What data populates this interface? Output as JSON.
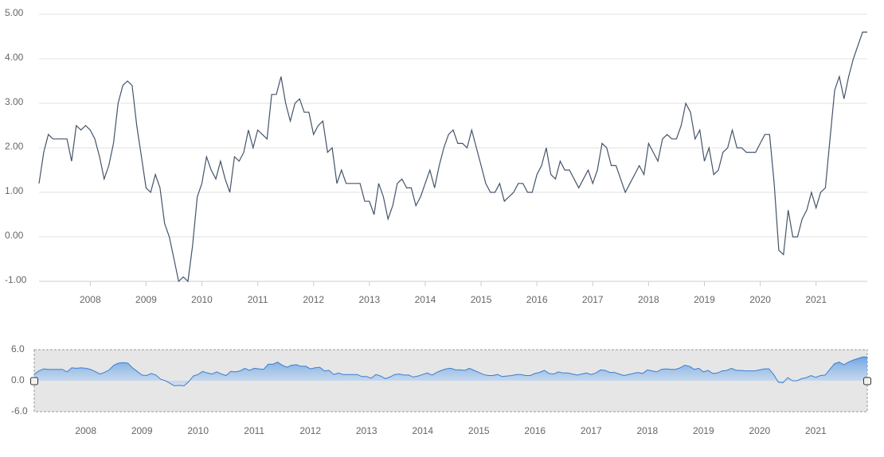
{
  "chart_data": [
    {
      "type": "line",
      "x": [
        2007.083,
        2007.167,
        2007.25,
        2007.333,
        2007.417,
        2007.5,
        2007.583,
        2007.667,
        2007.75,
        2007.833,
        2007.917,
        2008,
        2008.083,
        2008.167,
        2008.25,
        2008.333,
        2008.417,
        2008.5,
        2008.583,
        2008.667,
        2008.75,
        2008.833,
        2008.917,
        2009,
        2009.083,
        2009.167,
        2009.25,
        2009.333,
        2009.417,
        2009.5,
        2009.583,
        2009.667,
        2009.75,
        2009.833,
        2009.917,
        2010,
        2010.083,
        2010.167,
        2010.25,
        2010.333,
        2010.417,
        2010.5,
        2010.583,
        2010.667,
        2010.75,
        2010.833,
        2010.917,
        2011,
        2011.083,
        2011.167,
        2011.25,
        2011.333,
        2011.417,
        2011.5,
        2011.583,
        2011.667,
        2011.75,
        2011.833,
        2011.917,
        2012,
        2012.083,
        2012.167,
        2012.25,
        2012.333,
        2012.417,
        2012.5,
        2012.583,
        2012.667,
        2012.75,
        2012.833,
        2012.917,
        2013,
        2013.083,
        2013.167,
        2013.25,
        2013.333,
        2013.417,
        2013.5,
        2013.583,
        2013.667,
        2013.75,
        2013.833,
        2013.917,
        2014,
        2014.083,
        2014.167,
        2014.25,
        2014.333,
        2014.417,
        2014.5,
        2014.583,
        2014.667,
        2014.75,
        2014.833,
        2014.917,
        2015,
        2015.083,
        2015.167,
        2015.25,
        2015.333,
        2015.417,
        2015.5,
        2015.583,
        2015.667,
        2015.75,
        2015.833,
        2015.917,
        2016,
        2016.083,
        2016.167,
        2016.25,
        2016.333,
        2016.417,
        2016.5,
        2016.583,
        2016.667,
        2016.75,
        2016.833,
        2016.917,
        2017,
        2017.083,
        2017.167,
        2017.25,
        2017.333,
        2017.417,
        2017.5,
        2017.583,
        2017.667,
        2017.75,
        2017.833,
        2017.917,
        2018,
        2018.083,
        2018.167,
        2018.25,
        2018.333,
        2018.417,
        2018.5,
        2018.583,
        2018.667,
        2018.75,
        2018.833,
        2018.917,
        2019,
        2019.083,
        2019.167,
        2019.25,
        2019.333,
        2019.417,
        2019.5,
        2019.583,
        2019.667,
        2019.75,
        2019.833,
        2019.917,
        2020,
        2020.083,
        2020.167,
        2020.25,
        2020.333,
        2020.417,
        2020.5,
        2020.583,
        2020.667,
        2020.75,
        2020.833,
        2020.917,
        2021,
        2021.083,
        2021.167,
        2021.25,
        2021.333,
        2021.417,
        2021.5,
        2021.583,
        2021.667,
        2021.75,
        2021.833,
        2021.917
      ],
      "series": [
        {
          "color": "#44546a",
          "values": [
            1.2,
            1.9,
            2.3,
            2.2,
            2.2,
            2.2,
            2.2,
            1.7,
            2.5,
            2.4,
            2.5,
            2.4,
            2.2,
            1.8,
            1.3,
            1.6,
            2.1,
            3.0,
            3.4,
            3.5,
            3.4,
            2.5,
            1.8,
            1.1,
            1.0,
            1.4,
            1.1,
            0.3,
            0.0,
            -0.5,
            -1.0,
            -0.9,
            -1.0,
            -0.2,
            0.9,
            1.2,
            1.8,
            1.5,
            1.3,
            1.7,
            1.3,
            1.0,
            1.8,
            1.7,
            1.9,
            2.4,
            2.0,
            2.4,
            2.3,
            2.2,
            3.2,
            3.2,
            3.6,
            3.0,
            2.6,
            3.0,
            3.1,
            2.8,
            2.8,
            2.3,
            2.5,
            2.6,
            1.9,
            2.0,
            1.2,
            1.5,
            1.2,
            1.2,
            1.2,
            1.2,
            0.8,
            0.8,
            0.5,
            1.2,
            0.9,
            0.4,
            0.7,
            1.2,
            1.3,
            1.1,
            1.1,
            0.7,
            0.9,
            1.2,
            1.5,
            1.1,
            1.6,
            2.0,
            2.3,
            2.4,
            2.1,
            2.1,
            2.0,
            2.4,
            2.0,
            1.6,
            1.2,
            1.0,
            1.0,
            1.2,
            0.8,
            0.9,
            1.0,
            1.2,
            1.2,
            1.0,
            1.0,
            1.4,
            1.6,
            2.0,
            1.4,
            1.3,
            1.7,
            1.5,
            1.5,
            1.3,
            1.1,
            1.3,
            1.5,
            1.2,
            1.5,
            2.1,
            2.0,
            1.6,
            1.6,
            1.3,
            1.0,
            1.2,
            1.4,
            1.6,
            1.4,
            2.1,
            1.9,
            1.7,
            2.2,
            2.3,
            2.2,
            2.2,
            2.5,
            3.0,
            2.8,
            2.2,
            2.4,
            1.7,
            2.0,
            1.4,
            1.5,
            1.9,
            2.0,
            2.4,
            2.0,
            2.0,
            1.9,
            1.9,
            1.9,
            2.1,
            2.3,
            2.3,
            1.2,
            -0.3,
            -0.4,
            0.6,
            0.0,
            0.0,
            0.4,
            0.6,
            1.0,
            0.65,
            1.0,
            1.1,
            2.2,
            3.3,
            3.6,
            3.1,
            3.6,
            4.0,
            4.3,
            4.6,
            4.6
          ]
        }
      ],
      "xlim": [
        2007.083,
        2021.917
      ],
      "xticks": [
        2008,
        2009,
        2010,
        2011,
        2012,
        2013,
        2014,
        2015,
        2016,
        2017,
        2018,
        2019,
        2020,
        2021
      ],
      "ylim": [
        -1,
        5
      ],
      "yticks": [
        {
          "value": 5,
          "label": "5.00"
        },
        {
          "value": 4,
          "label": "4.00"
        },
        {
          "value": 3,
          "label": "3.00"
        },
        {
          "value": 2,
          "label": "2.00"
        },
        {
          "value": 1,
          "label": "1.00"
        },
        {
          "value": 0,
          "label": "0.00"
        },
        {
          "value": -1,
          "label": "-1.00"
        }
      ],
      "grid": true
    },
    {
      "type": "area",
      "color": "#3a7fcf",
      "xlim": [
        2007.083,
        2021.917
      ],
      "xticks": [
        2008,
        2009,
        2010,
        2011,
        2012,
        2013,
        2014,
        2015,
        2016,
        2017,
        2018,
        2019,
        2020,
        2021
      ],
      "ylim": [
        -6,
        6
      ],
      "yticks": [
        {
          "value": 6,
          "label": "6.0"
        },
        {
          "value": 0,
          "label": "0.0"
        },
        {
          "value": -6,
          "label": "-6.0"
        }
      ]
    }
  ]
}
